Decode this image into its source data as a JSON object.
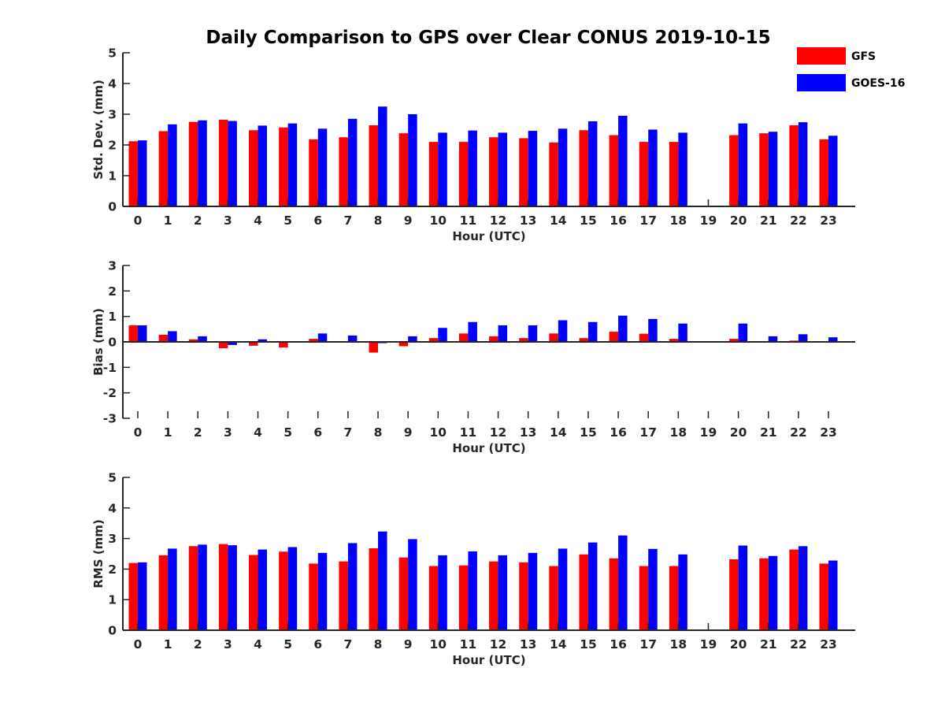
{
  "colors": {
    "gfs": "#ff0000",
    "goes": "#0000ff",
    "axis": "#262626"
  },
  "chart_data": [
    {
      "type": "bar",
      "title": "Daily Comparison to GPS over Clear CONUS 2019-10-15",
      "xlabel": "Hour (UTC)",
      "ylabel": "Std. Dev. (mm)",
      "ylim": [
        0,
        5
      ],
      "yticks": [
        "0",
        "1",
        "2",
        "3",
        "4",
        "5"
      ],
      "categories": [
        "0",
        "1",
        "2",
        "3",
        "4",
        "5",
        "6",
        "7",
        "8",
        "9",
        "10",
        "11",
        "12",
        "13",
        "14",
        "15",
        "16",
        "17",
        "18",
        "19",
        "20",
        "21",
        "22",
        "23"
      ],
      "series": [
        {
          "name": "GFS",
          "values": [
            2.12,
            2.45,
            2.75,
            2.82,
            2.48,
            2.57,
            2.18,
            2.25,
            2.64,
            2.38,
            2.1,
            2.1,
            2.25,
            2.22,
            2.08,
            2.48,
            2.32,
            2.1,
            2.1,
            null,
            2.32,
            2.38,
            2.64,
            2.18
          ]
        },
        {
          "name": "GOES-16",
          "values": [
            2.15,
            2.67,
            2.8,
            2.78,
            2.63,
            2.7,
            2.53,
            2.85,
            3.25,
            3.0,
            2.4,
            2.47,
            2.4,
            2.46,
            2.53,
            2.77,
            2.95,
            2.5,
            2.4,
            null,
            2.7,
            2.43,
            2.74,
            2.3
          ]
        }
      ],
      "legend": "top-right"
    },
    {
      "type": "bar",
      "xlabel": "Hour (UTC)",
      "ylabel": "Bias (mm)",
      "ylim": [
        -3,
        3
      ],
      "yticks": [
        "-3",
        "-2",
        "-1",
        "0",
        "1",
        "2",
        "3"
      ],
      "categories": [
        "0",
        "1",
        "2",
        "3",
        "4",
        "5",
        "6",
        "7",
        "8",
        "9",
        "10",
        "11",
        "12",
        "13",
        "14",
        "15",
        "16",
        "17",
        "18",
        "19",
        "20",
        "21",
        "22",
        "23"
      ],
      "series": [
        {
          "name": "GFS",
          "values": [
            0.65,
            0.28,
            0.1,
            -0.25,
            -0.15,
            -0.22,
            0.12,
            0.0,
            -0.42,
            -0.17,
            0.15,
            0.33,
            0.22,
            0.15,
            0.33,
            0.15,
            0.4,
            0.32,
            0.12,
            null,
            0.12,
            0.0,
            0.05,
            0.0
          ]
        },
        {
          "name": "GOES-16",
          "values": [
            0.65,
            0.42,
            0.22,
            -0.12,
            0.1,
            0.0,
            0.33,
            0.25,
            -0.05,
            0.22,
            0.55,
            0.78,
            0.65,
            0.65,
            0.85,
            0.78,
            1.03,
            0.9,
            0.72,
            null,
            0.72,
            0.22,
            0.3,
            0.18
          ]
        }
      ]
    },
    {
      "type": "bar",
      "xlabel": "Hour (UTC)",
      "ylabel": "RMS (mm)",
      "ylim": [
        0,
        5
      ],
      "yticks": [
        "0",
        "1",
        "2",
        "3",
        "4",
        "5"
      ],
      "categories": [
        "0",
        "1",
        "2",
        "3",
        "4",
        "5",
        "6",
        "7",
        "8",
        "9",
        "10",
        "11",
        "12",
        "13",
        "14",
        "15",
        "16",
        "17",
        "18",
        "19",
        "20",
        "21",
        "22",
        "23"
      ],
      "series": [
        {
          "name": "GFS",
          "values": [
            2.2,
            2.45,
            2.75,
            2.82,
            2.46,
            2.57,
            2.18,
            2.25,
            2.68,
            2.38,
            2.1,
            2.12,
            2.25,
            2.22,
            2.1,
            2.48,
            2.35,
            2.1,
            2.1,
            null,
            2.32,
            2.35,
            2.64,
            2.18
          ]
        },
        {
          "name": "GOES-16",
          "values": [
            2.22,
            2.67,
            2.8,
            2.78,
            2.64,
            2.72,
            2.53,
            2.85,
            3.23,
            2.98,
            2.45,
            2.58,
            2.45,
            2.53,
            2.67,
            2.87,
            3.1,
            2.66,
            2.48,
            null,
            2.77,
            2.43,
            2.75,
            2.28
          ]
        }
      ]
    }
  ]
}
